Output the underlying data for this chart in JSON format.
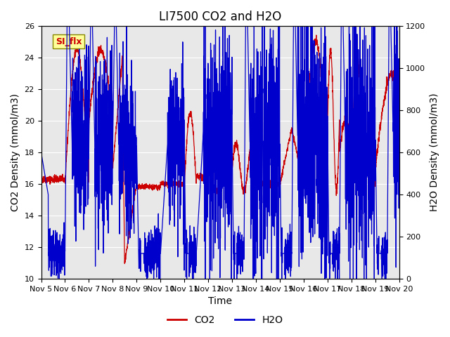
{
  "title": "LI7500 CO2 and H2O",
  "xlabel": "Time",
  "ylabel_left": "CO2 Density (mmol/m3)",
  "ylabel_right": "H2O Density (mmol/m3)",
  "ylim_left": [
    10,
    26
  ],
  "ylim_right": [
    0,
    1200
  ],
  "yticks_left": [
    10,
    12,
    14,
    16,
    18,
    20,
    22,
    24,
    26
  ],
  "yticks_right": [
    0,
    200,
    400,
    600,
    800,
    1000,
    1200
  ],
  "xtick_labels": [
    "Nov 5",
    "Nov 6",
    "Nov 7",
    "Nov 8",
    "Nov 9",
    "Nov 10",
    "Nov 11",
    "Nov 12",
    "Nov 13",
    "Nov 14",
    "Nov 15",
    "Nov 16",
    "Nov 17",
    "Nov 18",
    "Nov 19",
    "Nov 20"
  ],
  "legend_label_co2": "CO2",
  "legend_label_h2o": "H2O",
  "annotation_text": "SI_flx",
  "annotation_color": "#cc0000",
  "annotation_bg": "#ffff99",
  "co2_color": "#cc0000",
  "h2o_color": "#0000cc",
  "bg_color": "#e8e8e8",
  "title_fontsize": 12,
  "axis_fontsize": 10,
  "tick_fontsize": 8
}
